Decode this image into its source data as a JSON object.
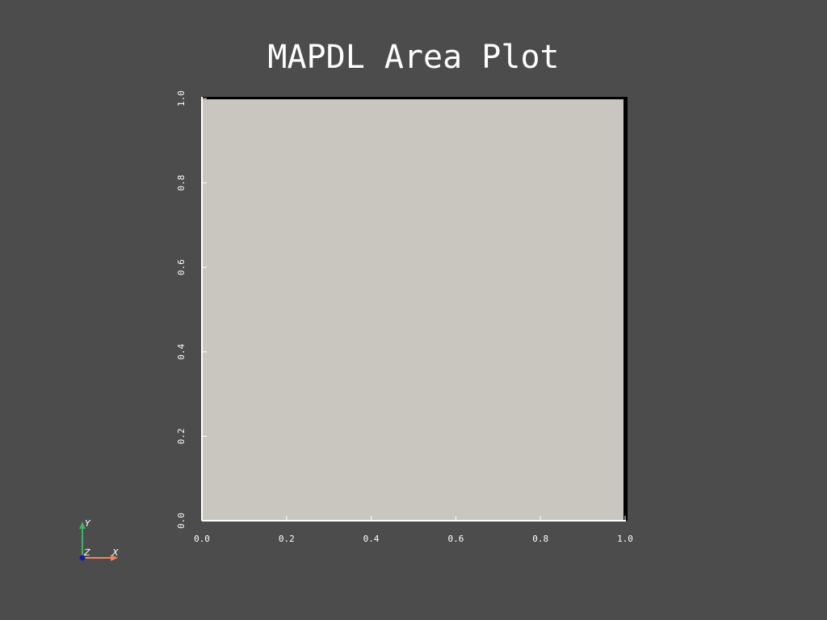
{
  "chart_data": {
    "type": "area",
    "title": "MAPDL Area Plot",
    "xlabel": "",
    "ylabel": "",
    "xlim": [
      0.0,
      1.0
    ],
    "ylim": [
      0.0,
      1.0
    ],
    "x_ticks": [
      "0.0",
      "0.2",
      "0.4",
      "0.6",
      "0.8",
      "1.0"
    ],
    "y_ticks": [
      "0.0",
      "0.2",
      "0.4",
      "0.6",
      "0.8",
      "1.0"
    ],
    "area": {
      "x": [
        0.0,
        1.0
      ],
      "y": [
        0.0,
        1.0
      ]
    },
    "grid": false,
    "legend": "none"
  },
  "axes_triad": {
    "x_label": "X",
    "y_label": "Y",
    "z_label": "Z"
  },
  "colors": {
    "background": "#4c4c4c",
    "area_fill": "#c9c6bf",
    "area_edge": "#000000",
    "axis_line": "#ffffff",
    "text": "#ffffff",
    "triad_x": "#f0875a",
    "triad_y": "#3cb464",
    "triad_z": "#1a1aa0"
  }
}
